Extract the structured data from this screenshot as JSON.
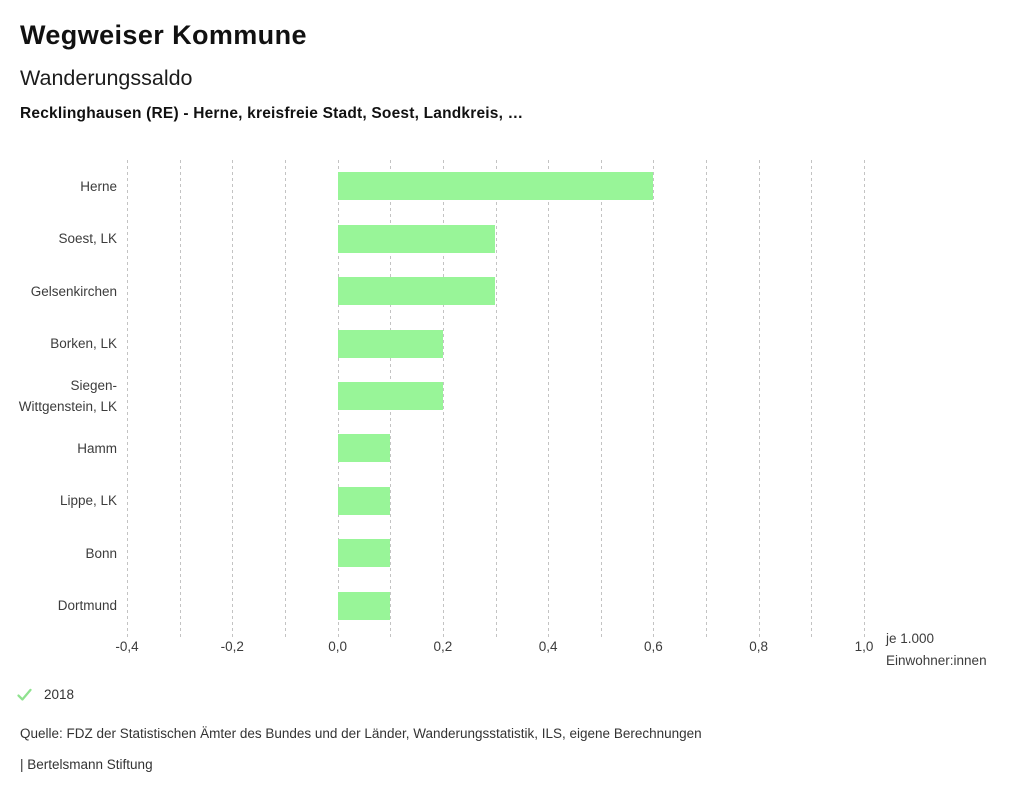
{
  "header": {
    "title": "Wegweiser Kommune",
    "subtitle": "Wanderungssaldo",
    "selection": "Recklinghausen (RE) - Herne, kreisfreie Stadt, Soest, Landkreis, …"
  },
  "chart_data": {
    "type": "bar",
    "orientation": "horizontal",
    "title": "Wanderungssaldo",
    "categories": [
      "Herne",
      "Soest, LK",
      "Gelsenkirchen",
      "Borken, LK",
      "Siegen-Wittgenstein, LK",
      "Hamm",
      "Lippe, LK",
      "Bonn",
      "Dortmund"
    ],
    "values": [
      0.6,
      0.3,
      0.3,
      0.2,
      0.2,
      0.1,
      0.1,
      0.1,
      0.1
    ],
    "series_name": "2018",
    "xlim": [
      -0.4,
      1.0
    ],
    "grid_step": 0.1,
    "grid_on": true,
    "xtick_values": [
      -0.4,
      -0.2,
      0.0,
      0.2,
      0.4,
      0.6,
      0.8,
      1.0
    ],
    "xtick_labels": [
      "-0,4",
      "-0,2",
      "0,0",
      "0,2",
      "0,4",
      "0,6",
      "0,8",
      "1,0"
    ],
    "unit_label": [
      "je 1.000",
      "Einwohner:innen"
    ],
    "bar_color": "#98f598",
    "grid_color": "#c3c3c3"
  },
  "legend": {
    "year": "2018",
    "check_color": "#8fe28f"
  },
  "footer": {
    "source": "Quelle: FDZ der Statistischen Ämter des Bundes und der Länder, Wanderungsstatistik, ILS, eigene Berechnungen",
    "branding": "| Bertelsmann Stiftung"
  }
}
